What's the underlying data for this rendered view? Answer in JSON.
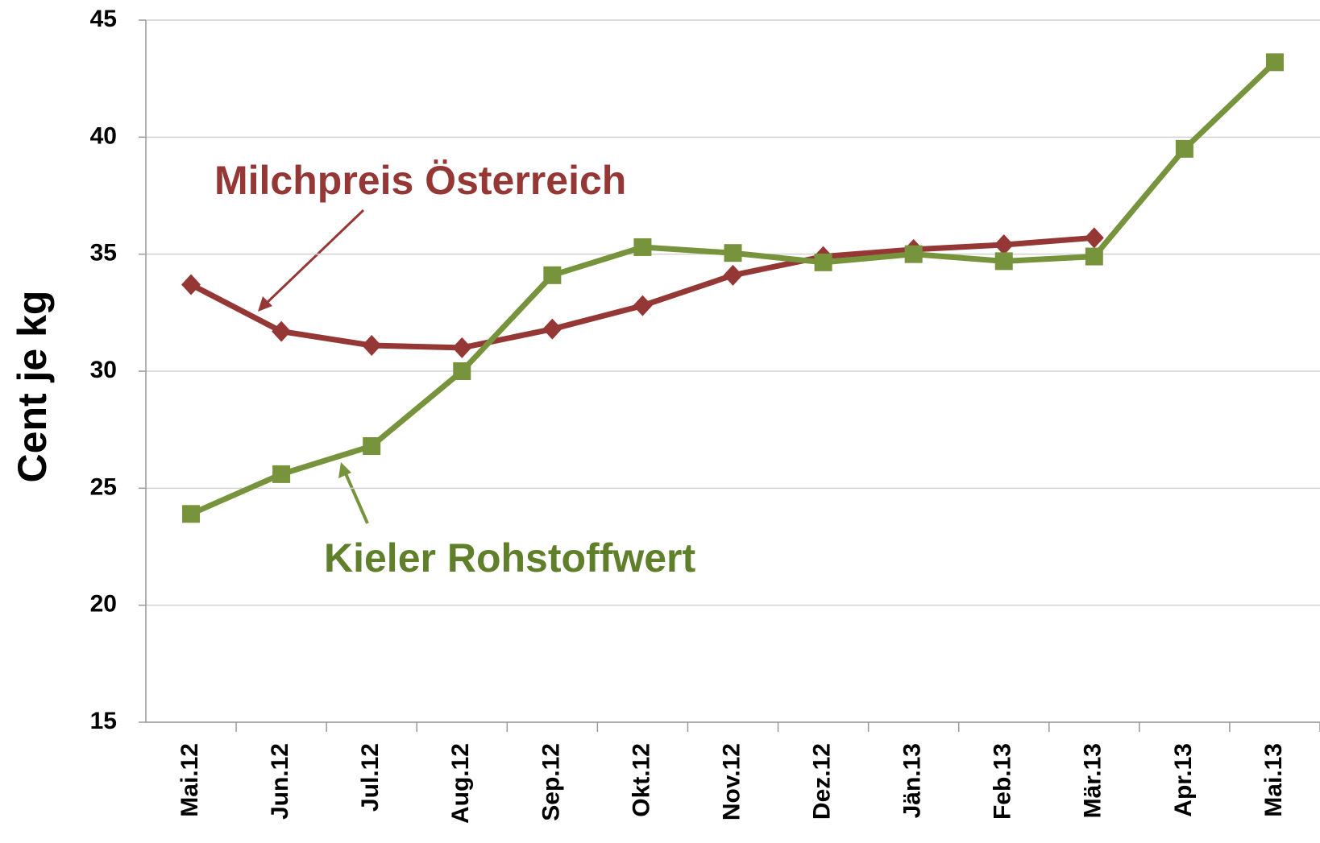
{
  "chart_data": {
    "type": "line",
    "y_label": "Cent je kg",
    "categories": [
      "Mai.12",
      "Jun.12",
      "Jul.12",
      "Aug.12",
      "Sep.12",
      "Okt.12",
      "Nov.12",
      "Dez.12",
      "Jän.13",
      "Feb.13",
      "Mär.13",
      "Apr.13",
      "Mai.13"
    ],
    "series": [
      {
        "name": "Milchpreis Österreich",
        "color": "#953735",
        "marker": "diamond",
        "values": [
          33.7,
          31.7,
          31.1,
          31.0,
          31.8,
          32.8,
          34.1,
          34.9,
          35.2,
          35.4,
          35.7,
          null,
          null
        ]
      },
      {
        "name": "Kieler Rohstoffwert",
        "color": "#77933c",
        "marker": "square",
        "values": [
          23.9,
          25.6,
          26.8,
          30.0,
          34.1,
          35.3,
          35.05,
          34.65,
          35.0,
          34.7,
          34.9,
          39.5,
          43.2
        ]
      }
    ],
    "ylim": [
      15,
      45
    ],
    "yticks": [
      15,
      20,
      25,
      30,
      35,
      40,
      45
    ],
    "grid": true
  }
}
